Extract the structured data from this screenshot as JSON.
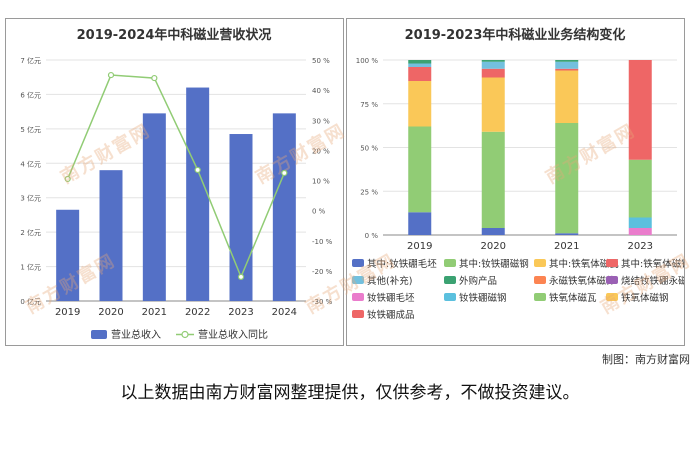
{
  "chart_data": [
    {
      "type": "bar+line",
      "title": "2019-2024年中科磁业营收状况",
      "categories": [
        "2019",
        "2020",
        "2021",
        "2022",
        "2023",
        "2024"
      ],
      "series": [
        {
          "name": "营业总收入",
          "kind": "bar",
          "axis": "left",
          "values": [
            2.65,
            3.8,
            5.45,
            6.2,
            4.85,
            5.45
          ],
          "color": "#5470c6"
        },
        {
          "name": "营业总收入同比",
          "kind": "line",
          "axis": "right",
          "values": [
            10.5,
            45,
            44,
            13.5,
            -22,
            12.5
          ],
          "color": "#91cc75"
        }
      ],
      "y_left": {
        "min": 0,
        "max": 7,
        "ticks": [
          "0 亿元",
          "1 亿元",
          "2 亿元",
          "3 亿元",
          "4 亿元",
          "5 亿元",
          "6 亿元",
          "7 亿元"
        ]
      },
      "y_right": {
        "min": -30,
        "max": 50,
        "ticks": [
          "-30 %",
          "-20 %",
          "-10 %",
          "0 %",
          "10 %",
          "20 %",
          "30 %",
          "40 %",
          "50 %"
        ]
      },
      "legend_position": "bottom",
      "grid": true
    },
    {
      "type": "stacked-bar",
      "title": "2019-2023年中科磁业业务结构变化",
      "categories": [
        "2019",
        "2020",
        "2021",
        "2023"
      ],
      "y": {
        "min": 0,
        "max": 100,
        "ticks": [
          "0 %",
          "25 %",
          "50 %",
          "75 %",
          "100 %"
        ]
      },
      "legend_position": "bottom",
      "series": [
        {
          "name": "其中:钕铁硼毛坯",
          "color": "#5470c6",
          "values": [
            13,
            4,
            1,
            0
          ]
        },
        {
          "name": "其中:钕铁硼磁钢",
          "color": "#91cc75",
          "values": [
            49,
            55,
            63,
            0
          ]
        },
        {
          "name": "其中:铁氧体磁瓦",
          "color": "#fac858",
          "values": [
            26,
            31,
            30,
            0
          ]
        },
        {
          "name": "其中:铁氧体磁钢",
          "color": "#ee6666",
          "values": [
            8,
            5,
            1,
            0
          ]
        },
        {
          "name": "其他(补充)",
          "color": "#73c0de",
          "values": [
            2,
            4,
            4,
            0
          ]
        },
        {
          "name": "外购产品",
          "color": "#3ba272",
          "values": [
            2,
            1,
            1,
            0
          ]
        },
        {
          "name": "永磁铁氧体磁体",
          "color": "#fc8452",
          "values": [
            0,
            0,
            0,
            0
          ]
        },
        {
          "name": "烧结钕铁硼永磁材料",
          "color": "#9a60b4",
          "values": [
            0,
            0,
            0,
            0
          ]
        },
        {
          "name": "钕铁硼毛坯",
          "color": "#ea7ccc",
          "values": [
            0,
            0,
            0,
            4
          ]
        },
        {
          "name": "钕铁硼磁钢",
          "color": "#5bc0de",
          "values": [
            0,
            0,
            0,
            6
          ]
        },
        {
          "name": "铁氧体磁瓦",
          "color": "#91cc75",
          "values": [
            0,
            0,
            0,
            33
          ]
        },
        {
          "name": "铁氧体磁钢",
          "color": "#fac858",
          "values": [
            0,
            0,
            0,
            0
          ]
        },
        {
          "name": "钕铁硼成品",
          "color": "#ee6666",
          "values": [
            0,
            0,
            0,
            57
          ]
        }
      ]
    }
  ],
  "watermark": "南方财富网",
  "watermark_en": "southmoney.com",
  "credit": "制图：南方财富网",
  "disclaimer": "以上数据由南方财富网整理提供，仅供参考，不做投资建议。"
}
